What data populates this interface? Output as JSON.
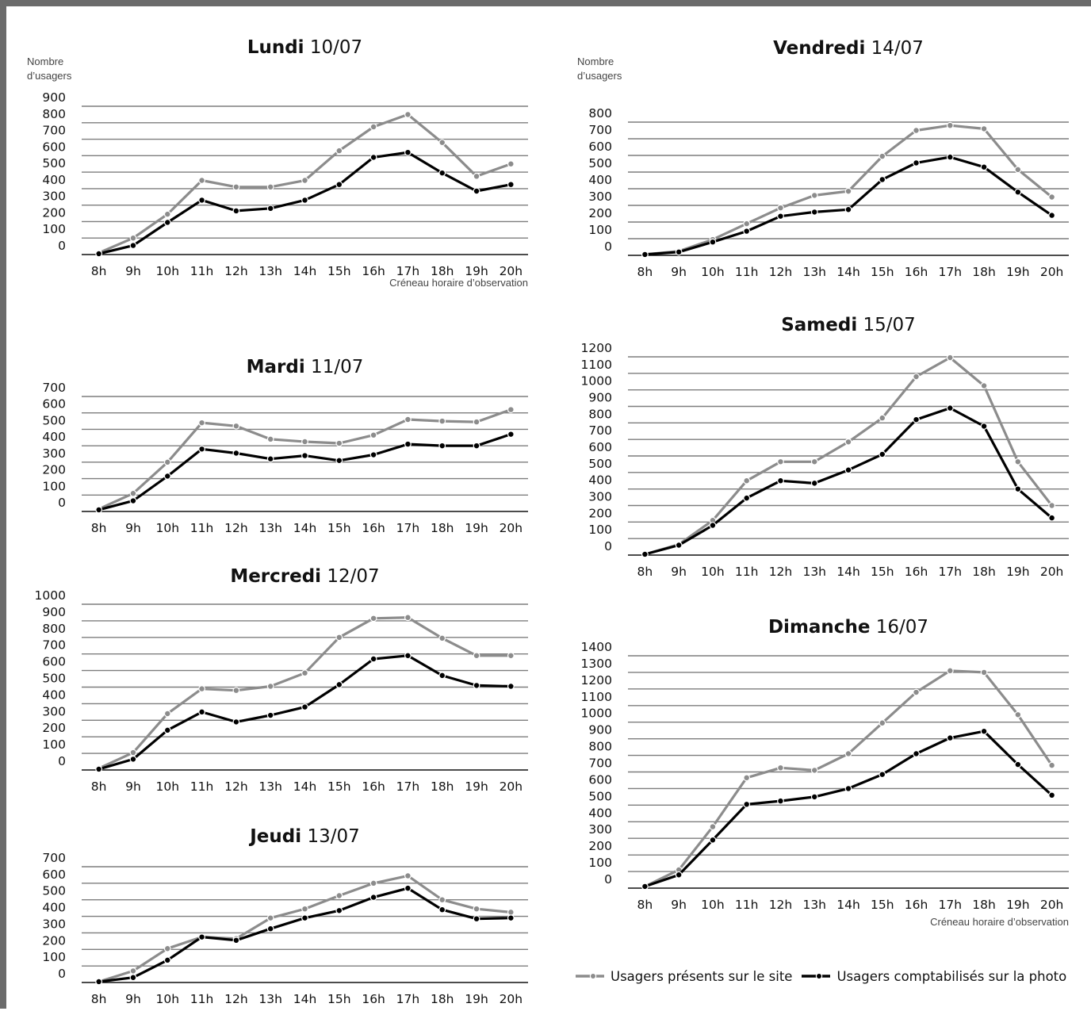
{
  "colors": {
    "present": "#8c8c8c",
    "counted": "#000000"
  },
  "legend": {
    "present_label": "Usagers présents sur le site",
    "counted_label": "Usagers comptabilisés sur la photo"
  },
  "chart_data": [
    {
      "type": "line",
      "title_bold": "Lundi",
      "title_rest": "10/07",
      "ylabel": "Nombre\nd’usagers",
      "xlabel": "Créneau horaire d’observation",
      "categories": [
        "8h",
        "9h",
        "10h",
        "11h",
        "12h",
        "13h",
        "14h",
        "15h",
        "16h",
        "17h",
        "18h",
        "19h",
        "20h"
      ],
      "ylim": [
        0,
        900
      ],
      "yticks": [
        0,
        100,
        200,
        300,
        400,
        500,
        600,
        700,
        800,
        900
      ],
      "grid": true,
      "series": [
        {
          "key": "present",
          "values": [
            10,
            100,
            245,
            450,
            410,
            410,
            450,
            630,
            775,
            850,
            680,
            475,
            550
          ]
        },
        {
          "key": "counted",
          "values": [
            5,
            55,
            195,
            330,
            265,
            280,
            330,
            425,
            590,
            620,
            495,
            385,
            425
          ]
        }
      ]
    },
    {
      "type": "line",
      "title_bold": "Mardi",
      "title_rest": "11/07",
      "categories": [
        "8h",
        "9h",
        "10h",
        "11h",
        "12h",
        "13h",
        "14h",
        "15h",
        "16h",
        "17h",
        "18h",
        "19h",
        "20h"
      ],
      "ylim": [
        0,
        700
      ],
      "yticks": [
        0,
        100,
        200,
        300,
        400,
        500,
        600,
        700
      ],
      "grid": true,
      "series": [
        {
          "key": "present",
          "values": [
            15,
            110,
            300,
            540,
            520,
            440,
            425,
            415,
            465,
            560,
            550,
            545,
            620
          ]
        },
        {
          "key": "counted",
          "values": [
            10,
            65,
            215,
            380,
            355,
            320,
            340,
            310,
            345,
            410,
            400,
            400,
            470
          ]
        }
      ]
    },
    {
      "type": "line",
      "title_bold": "Mercredi",
      "title_rest": "12/07",
      "categories": [
        "8h",
        "9h",
        "10h",
        "11h",
        "12h",
        "13h",
        "14h",
        "15h",
        "16h",
        "17h",
        "18h",
        "19h",
        "20h"
      ],
      "ylim": [
        0,
        1000
      ],
      "yticks": [
        0,
        100,
        200,
        300,
        400,
        500,
        600,
        700,
        800,
        900,
        1000
      ],
      "grid": true,
      "series": [
        {
          "key": "present",
          "values": [
            10,
            105,
            340,
            490,
            480,
            505,
            585,
            800,
            915,
            920,
            795,
            690,
            690
          ]
        },
        {
          "key": "counted",
          "values": [
            5,
            65,
            240,
            350,
            290,
            330,
            380,
            515,
            670,
            690,
            570,
            510,
            505
          ]
        }
      ]
    },
    {
      "type": "line",
      "title_bold": "Jeudi",
      "title_rest": "13/07",
      "categories": [
        "8h",
        "9h",
        "10h",
        "11h",
        "12h",
        "13h",
        "14h",
        "15h",
        "16h",
        "17h",
        "18h",
        "19h",
        "20h"
      ],
      "ylim": [
        0,
        700
      ],
      "yticks": [
        0,
        100,
        200,
        300,
        400,
        500,
        600,
        700
      ],
      "grid": true,
      "series": [
        {
          "key": "present",
          "values": [
            5,
            70,
            205,
            275,
            265,
            390,
            445,
            525,
            600,
            645,
            500,
            445,
            425
          ]
        },
        {
          "key": "counted",
          "values": [
            5,
            30,
            135,
            275,
            255,
            325,
            390,
            435,
            515,
            570,
            440,
            385,
            390
          ]
        }
      ]
    },
    {
      "type": "line",
      "title_bold": "Vendredi",
      "title_rest": "14/07",
      "ylabel": "Nombre\nd’usagers",
      "categories": [
        "8h",
        "9h",
        "10h",
        "11h",
        "12h",
        "13h",
        "14h",
        "15h",
        "16h",
        "17h",
        "18h",
        "19h",
        "20h"
      ],
      "ylim": [
        0,
        800
      ],
      "yticks": [
        0,
        100,
        200,
        300,
        400,
        500,
        600,
        700,
        800
      ],
      "grid": true,
      "series": [
        {
          "key": "present",
          "values": [
            5,
            25,
            95,
            190,
            285,
            360,
            385,
            595,
            750,
            780,
            760,
            515,
            350
          ]
        },
        {
          "key": "counted",
          "values": [
            5,
            20,
            80,
            145,
            235,
            260,
            275,
            455,
            555,
            590,
            530,
            380,
            240
          ]
        }
      ]
    },
    {
      "type": "line",
      "title_bold": "Samedi",
      "title_rest": "15/07",
      "categories": [
        "8h",
        "9h",
        "10h",
        "11h",
        "12h",
        "13h",
        "14h",
        "15h",
        "16h",
        "17h",
        "18h",
        "19h",
        "20h"
      ],
      "ylim": [
        0,
        1200
      ],
      "yticks": [
        0,
        100,
        200,
        300,
        400,
        500,
        600,
        700,
        800,
        900,
        1000,
        1100,
        1200
      ],
      "grid": true,
      "series": [
        {
          "key": "present",
          "values": [
            5,
            65,
            210,
            450,
            565,
            565,
            685,
            830,
            1080,
            1195,
            1025,
            565,
            300
          ]
        },
        {
          "key": "counted",
          "values": [
            5,
            60,
            180,
            345,
            450,
            435,
            515,
            610,
            820,
            890,
            780,
            400,
            225
          ]
        }
      ]
    },
    {
      "type": "line",
      "title_bold": "Dimanche",
      "title_rest": "16/07",
      "xlabel": "Créneau horaire d’observation",
      "categories": [
        "8h",
        "9h",
        "10h",
        "11h",
        "12h",
        "13h",
        "14h",
        "15h",
        "16h",
        "17h",
        "18h",
        "19h",
        "20h"
      ],
      "ylim": [
        0,
        1400
      ],
      "yticks": [
        0,
        100,
        200,
        300,
        400,
        500,
        600,
        700,
        800,
        900,
        1000,
        1100,
        1200,
        1300,
        1400
      ],
      "grid": true,
      "series": [
        {
          "key": "present",
          "values": [
            10,
            110,
            370,
            665,
            725,
            710,
            810,
            995,
            1180,
            1310,
            1300,
            1045,
            740
          ]
        },
        {
          "key": "counted",
          "values": [
            10,
            80,
            290,
            505,
            525,
            550,
            600,
            685,
            810,
            905,
            945,
            745,
            560
          ]
        }
      ]
    }
  ]
}
